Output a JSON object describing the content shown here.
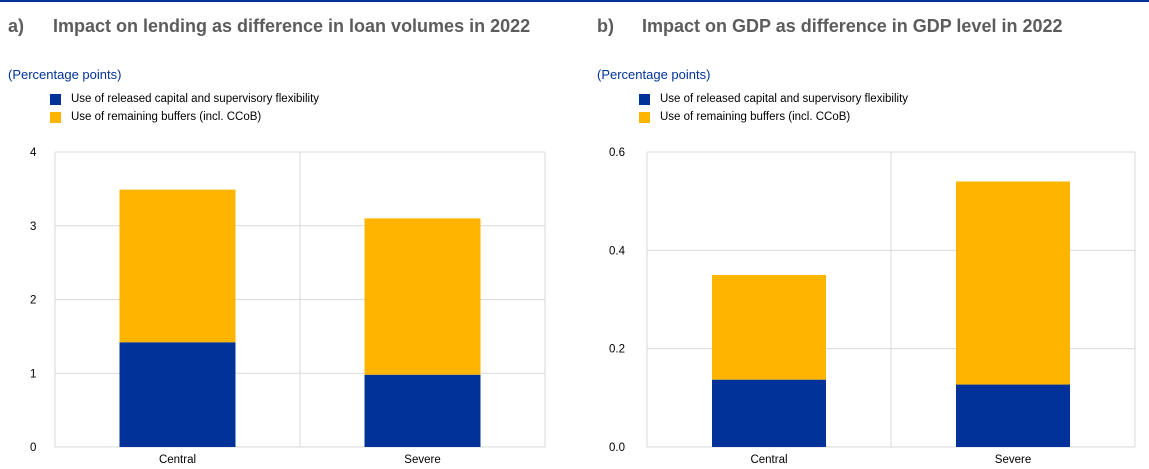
{
  "colors": {
    "primary": "#003299",
    "secondary": "#ffb400",
    "grid": "#d9d9d9",
    "title": "#5c5c5c"
  },
  "chart_data": [
    {
      "type": "bar",
      "stacked": true,
      "panel_letter": "a)",
      "title": "Impact on lending as difference in loan volumes in 2022",
      "unit_label": "(Percentage points)",
      "categories": [
        "Central",
        "Severe"
      ],
      "series": [
        {
          "name": "Use of released capital and supervisory flexibility",
          "color": "#003299",
          "values": [
            1.42,
            0.98
          ]
        },
        {
          "name": "Use of remaining buffers (incl. CCoB)",
          "color": "#ffb400",
          "values": [
            2.07,
            2.12
          ]
        }
      ],
      "ylim": [
        0,
        4
      ],
      "yticks": [
        "0",
        "1",
        "2",
        "3",
        "4"
      ],
      "grid": true,
      "legend_position": "top-left"
    },
    {
      "type": "bar",
      "stacked": true,
      "panel_letter": "b)",
      "title": "Impact on GDP as difference in GDP level in 2022",
      "unit_label": "(Percentage points)",
      "categories": [
        "Central",
        "Severe"
      ],
      "series": [
        {
          "name": "Use of released capital and supervisory flexibility",
          "color": "#003299",
          "values": [
            0.137,
            0.127
          ]
        },
        {
          "name": "Use of remaining buffers (incl. CCoB)",
          "color": "#ffb400",
          "values": [
            0.213,
            0.413
          ]
        }
      ],
      "ylim": [
        0,
        0.6
      ],
      "yticks": [
        "0.0",
        "0.2",
        "0.4",
        "0.6"
      ],
      "grid": true,
      "legend_position": "top-left"
    }
  ]
}
